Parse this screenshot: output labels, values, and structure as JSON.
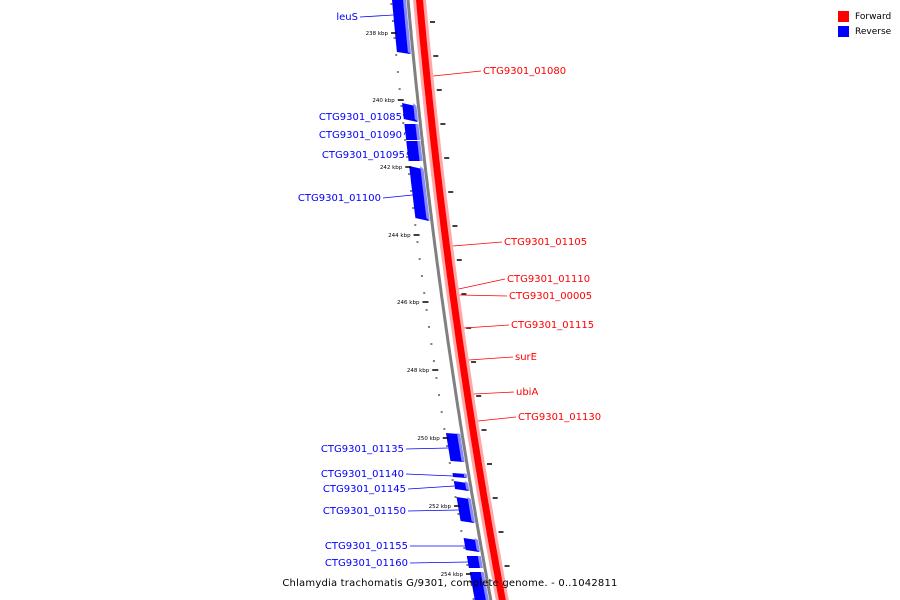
{
  "colors": {
    "forward": "#ff0000",
    "forward_light": "#ffa8a8",
    "reverse": "#0000ff",
    "reverse_light": "#8888ff",
    "backbone": "#808080"
  },
  "legend": [
    {
      "label": "Forward",
      "color": "#ff0000"
    },
    {
      "label": "Reverse",
      "color": "#0000ff"
    }
  ],
  "footer": "Chlamydia trachomatis G/9301, complete genome. - 0..1042811",
  "scale": {
    "unit": "kbp",
    "major_ticks": [
      238,
      240,
      242,
      244,
      246,
      248,
      250,
      252,
      254
    ]
  },
  "forward_genes": [
    {
      "name": "CTG9301_01080"
    },
    {
      "name": "CTG9301_01105"
    },
    {
      "name": "CTG9301_01110"
    },
    {
      "name": "CTG9301_00005"
    },
    {
      "name": "CTG9301_01115"
    },
    {
      "name": "surE"
    },
    {
      "name": "ubiA"
    },
    {
      "name": "CTG9301_01130"
    }
  ],
  "reverse_genes": [
    {
      "name": "leuS"
    },
    {
      "name": "CTG9301_01085"
    },
    {
      "name": "CTG9301_01090"
    },
    {
      "name": "CTG9301_01095"
    },
    {
      "name": "CTG9301_01100"
    },
    {
      "name": "CTG9301_01135"
    },
    {
      "name": "CTG9301_01140"
    },
    {
      "name": "CTG9301_01145"
    },
    {
      "name": "CTG9301_01150"
    },
    {
      "name": "CTG9301_01155"
    },
    {
      "name": "CTG9301_01160"
    }
  ]
}
